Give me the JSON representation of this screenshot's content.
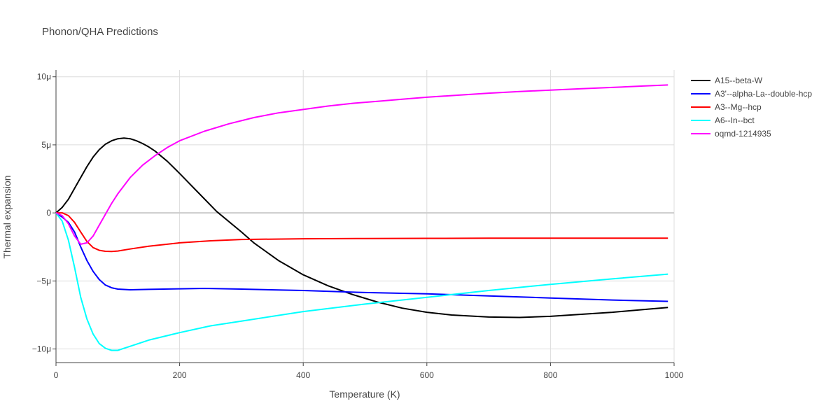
{
  "chart_data": {
    "type": "line",
    "title": "Phonon/QHA Predictions",
    "xlabel": "Temperature (K)",
    "ylabel": "Thermal expansion",
    "xlim": [
      0,
      1000
    ],
    "ylim": [
      -1.1e-05,
      1.05e-05
    ],
    "x_ticks": [
      0,
      200,
      400,
      600,
      800,
      1000
    ],
    "x_tick_labels": [
      "0",
      "200",
      "400",
      "600",
      "800",
      "1000"
    ],
    "y_ticks": [
      -1e-05,
      -5e-06,
      0,
      5e-06,
      1e-05
    ],
    "y_tick_labels": [
      "−10μ",
      "−5μ",
      "0",
      "5μ",
      "10μ"
    ],
    "grid": true,
    "legend_position": "top-right-outside",
    "series": [
      {
        "name": "A15--beta-W",
        "color": "#000000",
        "x": [
          0,
          10,
          20,
          30,
          40,
          50,
          60,
          70,
          80,
          90,
          100,
          110,
          120,
          130,
          140,
          150,
          160,
          180,
          200,
          230,
          260,
          300,
          320,
          360,
          400,
          440,
          480,
          520,
          560,
          600,
          640,
          700,
          750,
          800,
          850,
          900,
          950,
          990
        ],
        "y": [
          0,
          4e-07,
          1e-06,
          1.8e-06,
          2.6e-06,
          3.4e-06,
          4.1e-06,
          4.65e-06,
          5.05e-06,
          5.3e-06,
          5.45e-06,
          5.5e-06,
          5.45e-06,
          5.3e-06,
          5.1e-06,
          4.85e-06,
          4.55e-06,
          3.8e-06,
          2.9e-06,
          1.5e-06,
          1e-07,
          -1.4e-06,
          -2.2e-06,
          -3.5e-06,
          -4.55e-06,
          -5.35e-06,
          -6e-06,
          -6.55e-06,
          -7e-06,
          -7.3e-06,
          -7.5e-06,
          -7.65e-06,
          -7.68e-06,
          -7.6e-06,
          -7.45e-06,
          -7.3e-06,
          -7.1e-06,
          -6.95e-06
        ]
      },
      {
        "name": "A3'--alpha-La--double-hcp",
        "color": "#0000ff",
        "x": [
          0,
          10,
          20,
          30,
          40,
          50,
          60,
          70,
          80,
          90,
          100,
          120,
          150,
          200,
          240,
          300,
          400,
          500,
          600,
          700,
          800,
          900,
          990
        ],
        "y": [
          0,
          -3e-07,
          -7e-07,
          -1.4e-06,
          -2.5e-06,
          -3.5e-06,
          -4.3e-06,
          -4.9e-06,
          -5.3e-06,
          -5.5e-06,
          -5.6e-06,
          -5.65e-06,
          -5.62e-06,
          -5.58e-06,
          -5.55e-06,
          -5.6e-06,
          -5.7e-06,
          -5.85e-06,
          -5.95e-06,
          -6.1e-06,
          -6.25e-06,
          -6.4e-06,
          -6.5e-06
        ]
      },
      {
        "name": "A3--Mg--hcp",
        "color": "#ff0000",
        "x": [
          0,
          10,
          20,
          30,
          40,
          50,
          60,
          70,
          80,
          90,
          100,
          120,
          150,
          200,
          250,
          300,
          400,
          500,
          600,
          700,
          800,
          900,
          990
        ],
        "y": [
          0,
          0,
          -2e-07,
          -7e-07,
          -1.4e-06,
          -2.1e-06,
          -2.55e-06,
          -2.75e-06,
          -2.82e-06,
          -2.83e-06,
          -2.8e-06,
          -2.65e-06,
          -2.45e-06,
          -2.2e-06,
          -2.05e-06,
          -1.95e-06,
          -1.9e-06,
          -1.88e-06,
          -1.87e-06,
          -1.86e-06,
          -1.86e-06,
          -1.86e-06,
          -1.86e-06
        ]
      },
      {
        "name": "A6--In--bct",
        "color": "#00ffff",
        "x": [
          0,
          10,
          20,
          30,
          40,
          50,
          60,
          70,
          80,
          90,
          100,
          110,
          120,
          150,
          200,
          250,
          300,
          400,
          500,
          600,
          700,
          800,
          900,
          990
        ],
        "y": [
          0,
          -6e-07,
          -2e-06,
          -4e-06,
          -6.2e-06,
          -7.8e-06,
          -8.9e-06,
          -9.6e-06,
          -9.95e-06,
          -1.01e-05,
          -1.01e-05,
          -9.95e-06,
          -9.8e-06,
          -9.35e-06,
          -8.8e-06,
          -8.3e-06,
          -7.95e-06,
          -7.25e-06,
          -6.7e-06,
          -6.2e-06,
          -5.7e-06,
          -5.25e-06,
          -4.85e-06,
          -4.5e-06
        ]
      },
      {
        "name": "oqmd-1214935",
        "color": "#ff00ff",
        "x": [
          0,
          10,
          20,
          30,
          40,
          50,
          60,
          70,
          80,
          90,
          100,
          120,
          140,
          160,
          180,
          200,
          240,
          280,
          320,
          360,
          400,
          440,
          480,
          520,
          560,
          600,
          650,
          700,
          750,
          800,
          850,
          900,
          950,
          990
        ],
        "y": [
          0,
          -2e-07,
          -8e-07,
          -1.7e-06,
          -2.3e-06,
          -2.2e-06,
          -1.7e-06,
          -9e-07,
          -1e-07,
          7e-07,
          1.4e-06,
          2.6e-06,
          3.5e-06,
          4.2e-06,
          4.8e-06,
          5.3e-06,
          6e-06,
          6.55e-06,
          7e-06,
          7.35e-06,
          7.6e-06,
          7.85e-06,
          8.05e-06,
          8.2e-06,
          8.35e-06,
          8.5e-06,
          8.65e-06,
          8.8e-06,
          8.92e-06,
          9.02e-06,
          9.12e-06,
          9.22e-06,
          9.32e-06,
          9.4e-06
        ]
      }
    ]
  }
}
